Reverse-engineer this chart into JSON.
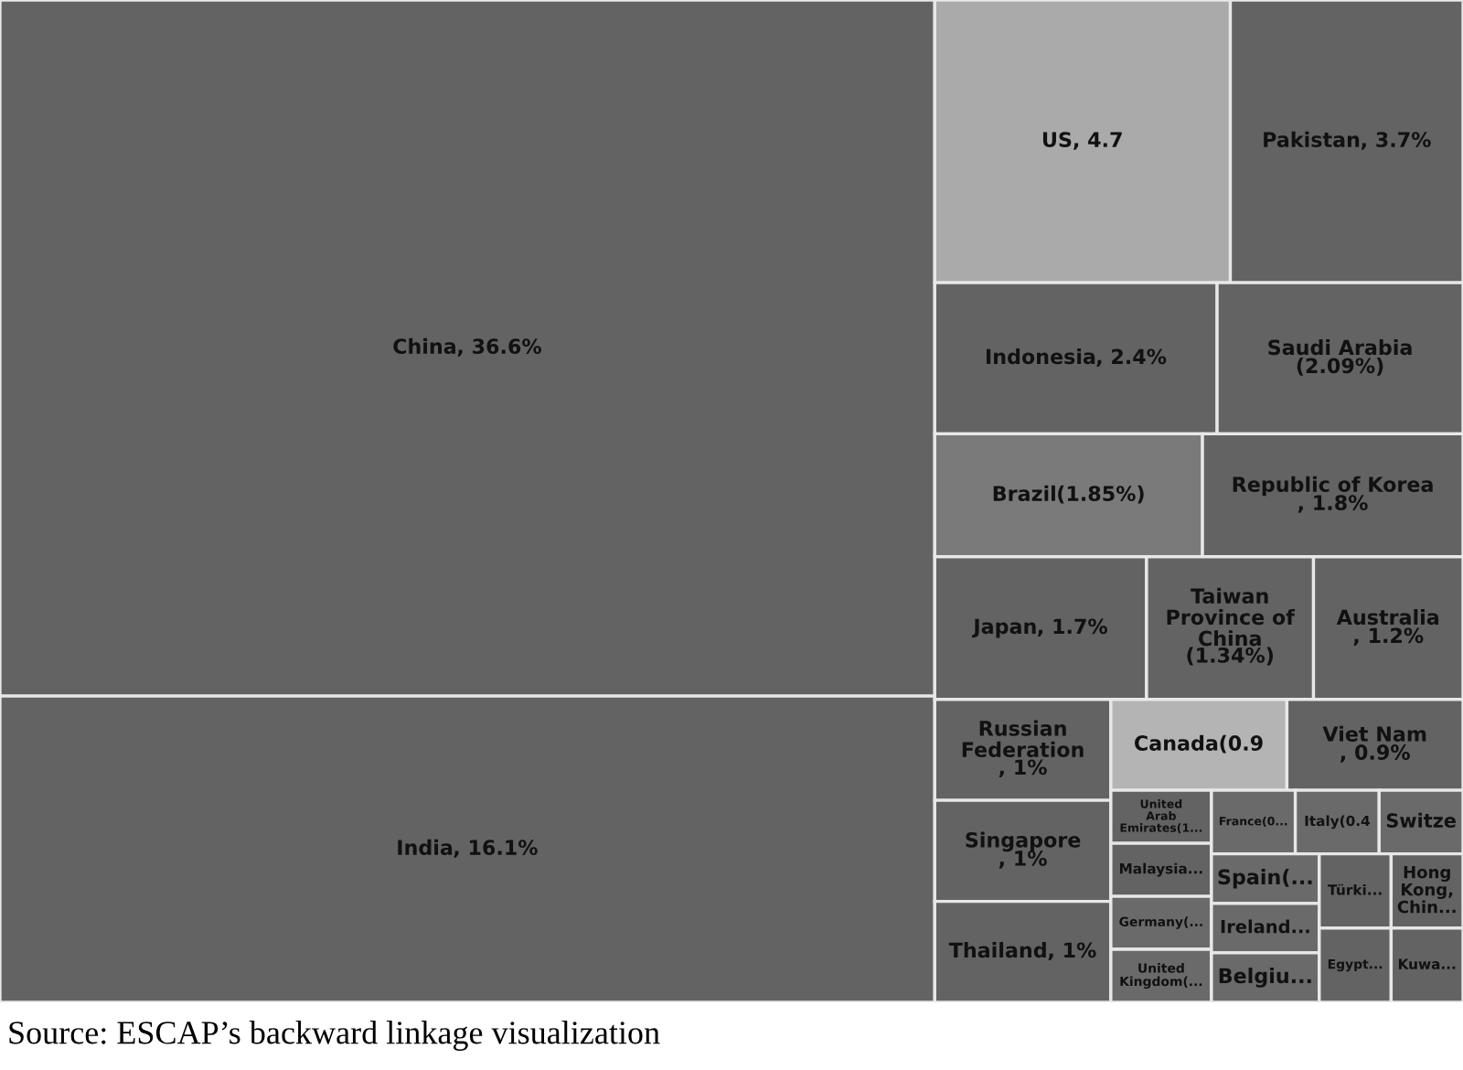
{
  "chart_data": {
    "type": "other",
    "categories": [
      "China",
      "India",
      "US",
      "Pakistan",
      "Indonesia",
      "Saudi Arabia",
      "Brazil",
      "Republic of Korea",
      "Japan",
      "Taiwan Province of China",
      "Australia",
      "Russian Federation",
      "Singapore",
      "Thailand",
      "Canada",
      "Viet Nam",
      "United Arab Emirates(1...",
      "Malaysia...",
      "Germany(...",
      "United Kingdom(...",
      "France(0...",
      "Italy(0.4",
      "Switze",
      "Spain(...",
      "Ireland...",
      "Belgiu...",
      "Türki...",
      "Hong Kong, Chin...",
      "Egypt...",
      "Kuwa..."
    ],
    "values": [
      36.6,
      16.1,
      4.7,
      3.7,
      2.4,
      2.09,
      1.85,
      1.8,
      1.7,
      1.34,
      1.2,
      1,
      1,
      1,
      0.9,
      0.9,
      null,
      null,
      null,
      null,
      null,
      null,
      null,
      null,
      null,
      null,
      null,
      null,
      null,
      null
    ],
    "value_labels": [
      ", 36.6%",
      ", 16.1%",
      ", 4.7",
      ", 3.7%",
      ", 2.4%",
      "(2.09%)",
      "(1.85%)",
      ", 1.8%",
      ", 1.7%",
      "(1.34%)",
      ", 1.2%",
      ", 1%",
      ", 1%",
      ", 1%",
      "(0.9",
      ", 0.9%",
      null,
      null,
      null,
      null,
      null,
      null,
      null,
      null,
      null,
      null,
      null,
      null,
      null,
      null
    ],
    "colors": [
      "#636363",
      "#636363",
      "#aaaaaa",
      "#636363",
      "#636363",
      "#636363",
      "#7a7a7a",
      "#636363",
      "#636363",
      "#636363",
      "#636363",
      "#636363",
      "#636363",
      "#636363",
      "#b4b4b4",
      "#636363",
      "#636363",
      "#636363",
      "#6a6a6a",
      "#6a6a6a",
      "#6a6a6a",
      "#6a6a6a",
      "#6a6a6a",
      "#6a6a6a",
      "#6a6a6a",
      "#6a6a6a",
      "#636363",
      "#636363",
      "#636363",
      "#636363"
    ],
    "annotations": [
      "Source: ESCAP’s backward linkage visualization"
    ]
  }
}
